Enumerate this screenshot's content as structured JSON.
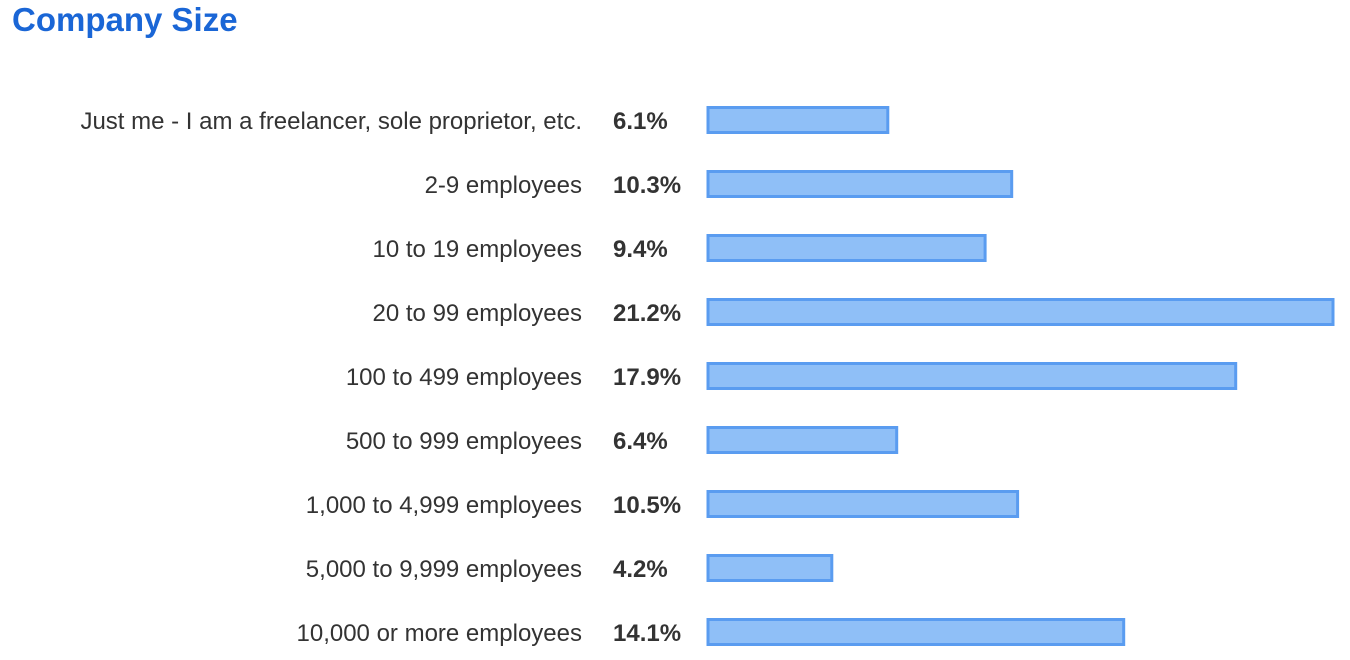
{
  "title": "Company Size",
  "colors": {
    "title": "#1a66d6",
    "bar_fill": "#8fbff7",
    "bar_stroke": "#5a9cf0",
    "text": "#333333"
  },
  "chart_data": {
    "type": "bar",
    "orientation": "horizontal",
    "title": "Company Size",
    "categories": [
      "Just me - I am a freelancer, sole proprietor, etc.",
      "2-9 employees",
      "10 to 19 employees",
      "20 to 99 employees",
      "100 to 499 employees",
      "500 to 999 employees",
      "1,000 to 4,999 employees",
      "5,000 to 9,999 employees",
      "10,000 or more employees"
    ],
    "values": [
      6.1,
      10.3,
      9.4,
      21.2,
      17.9,
      6.4,
      10.5,
      4.2,
      14.1
    ],
    "value_labels": [
      "6.1%",
      "10.3%",
      "9.4%",
      "21.2%",
      "17.9%",
      "6.4%",
      "10.5%",
      "4.2%",
      "14.1%"
    ],
    "unit": "%",
    "grid": false,
    "legend": "none"
  }
}
